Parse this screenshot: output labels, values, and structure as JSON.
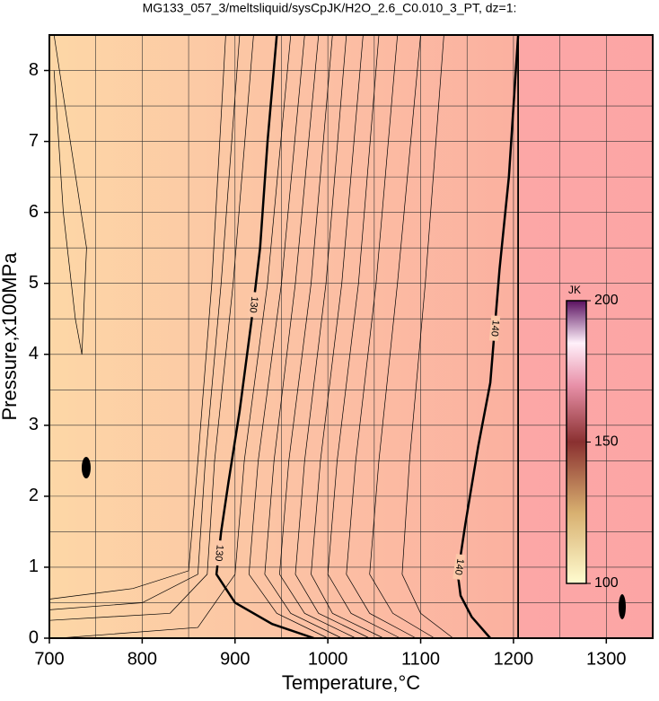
{
  "chart_data": {
    "type": "contour",
    "title": "MG133_057_3/meltsliquid/sysCpJK/H2O_2.6_C0.010_3_PT, dz=1:",
    "xlabel": "Temperature,°C",
    "ylabel": "Pressure,x100MPa",
    "xlim": [
      700,
      1350
    ],
    "ylim": [
      0,
      8.5
    ],
    "xticks": [
      700,
      800,
      900,
      1000,
      1100,
      1200,
      1300
    ],
    "yticks": [
      0,
      1,
      2,
      3,
      4,
      5,
      6,
      7,
      8
    ],
    "xgrid": [
      750,
      800,
      850,
      900,
      950,
      1000,
      1050,
      1100,
      1150,
      1200,
      1250,
      1300
    ],
    "ygrid": [
      0.5,
      1,
      1.5,
      2,
      2.5,
      3,
      3.5,
      4,
      4.5,
      5,
      5.5,
      6,
      6.5,
      7,
      7.5,
      8
    ],
    "grid": true,
    "major_contours": [
      {
        "level": 130,
        "x": [
          985,
          940,
          900,
          880,
          885,
          893,
          905,
          918,
          927,
          935,
          945
        ],
        "y": [
          0,
          0.2,
          0.5,
          0.9,
          1.5,
          2.2,
          3.2,
          4.5,
          5.5,
          7,
          8.5
        ]
      },
      {
        "level": 140,
        "x": [
          1175,
          1155,
          1143,
          1140,
          1148,
          1162,
          1175,
          1185,
          1195,
          1205
        ],
        "y": [
          0,
          0.3,
          0.6,
          0.9,
          1.6,
          2.7,
          3.6,
          5.2,
          6.5,
          8.5
        ]
      }
    ],
    "contours": [
      {
        "x": [
          700,
          790,
          850,
          860,
          875,
          890
        ],
        "y": [
          0.55,
          0.7,
          0.95,
          2.5,
          5,
          8.5
        ]
      },
      {
        "x": [
          700,
          800,
          860,
          868,
          885,
          905
        ],
        "y": [
          0.4,
          0.5,
          0.9,
          2.5,
          5,
          8.5
        ]
      },
      {
        "x": [
          700,
          830,
          870,
          878,
          898,
          920
        ],
        "y": [
          0.25,
          0.35,
          0.9,
          2.5,
          5,
          8.5
        ]
      },
      {
        "x": [
          710,
          860,
          900,
          910,
          935,
          960
        ],
        "y": [
          0,
          0.15,
          0.9,
          2.5,
          5,
          8.5
        ]
      },
      {
        "x": [
          1000,
          945,
          915,
          925,
          950,
          975
        ],
        "y": [
          0,
          0.35,
          0.9,
          2.5,
          5,
          8.5
        ]
      },
      {
        "x": [
          1015,
          960,
          932,
          942,
          965,
          990
        ],
        "y": [
          0,
          0.35,
          0.9,
          2.5,
          5,
          8.5
        ]
      },
      {
        "x": [
          1030,
          975,
          948,
          958,
          982,
          1005
        ],
        "y": [
          0,
          0.35,
          0.9,
          2.5,
          5,
          8.5
        ]
      },
      {
        "x": [
          1045,
          990,
          965,
          975,
          998,
          1020
        ],
        "y": [
          0,
          0.35,
          0.9,
          2.5,
          5,
          8.5
        ]
      },
      {
        "x": [
          1060,
          1005,
          982,
          992,
          1015,
          1038
        ],
        "y": [
          0,
          0.35,
          0.9,
          2.5,
          5,
          8.5
        ]
      },
      {
        "x": [
          1078,
          1025,
          1000,
          1010,
          1033,
          1055
        ],
        "y": [
          0,
          0.35,
          0.9,
          2.5,
          5,
          8.5
        ]
      },
      {
        "x": [
          1095,
          1045,
          1020,
          1030,
          1052,
          1075
        ],
        "y": [
          0,
          0.35,
          0.9,
          2.5,
          5,
          8.5
        ]
      },
      {
        "x": [
          1115,
          1070,
          1045,
          1055,
          1075,
          1100
        ],
        "y": [
          0,
          0.35,
          0.9,
          2.5,
          5,
          8.5
        ]
      },
      {
        "x": [
          1135,
          1100,
          1080,
          1088,
          1105,
          1125
        ],
        "y": [
          0,
          0.35,
          0.9,
          2.5,
          5,
          8.5
        ]
      },
      {
        "x": [
          1205,
          1205
        ],
        "y": [
          0,
          8.5
        ]
      },
      {
        "x": [
          705,
          715,
          728,
          735,
          740,
          705
        ],
        "y": [
          8,
          6,
          4.5,
          4,
          5.5,
          8.5
        ]
      }
    ],
    "colorbar": {
      "label": "JK",
      "lim": [
        100,
        200
      ],
      "ticks": [
        100,
        150,
        200
      ]
    }
  }
}
